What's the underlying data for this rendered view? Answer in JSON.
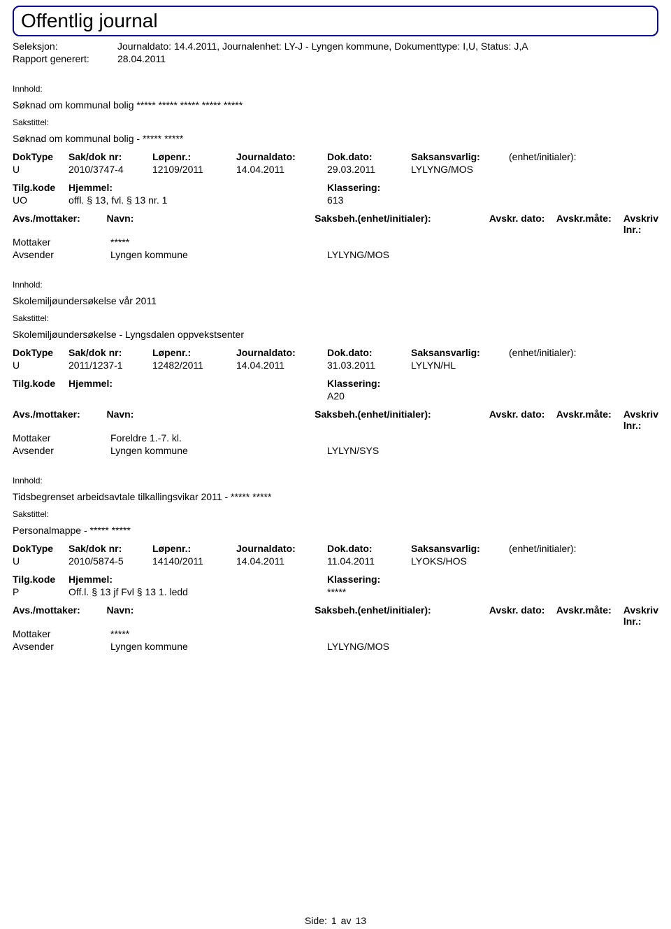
{
  "header": {
    "title": "Offentlig journal"
  },
  "meta": {
    "seleksjon_label": "Seleksjon:",
    "seleksjon_value": "Journaldato: 14.4.2011, Journalenhet: LY-J - Lyngen kommune, Dokumenttype: I,U, Status: J,A",
    "rapport_label": "Rapport generert:",
    "rapport_value": "28.04.2011"
  },
  "labels": {
    "innhold": "Innhold:",
    "sakstittel": "Sakstittel:",
    "doktype": "DokType",
    "sakdok": "Sak/dok nr:",
    "lopenr": "Løpenr.:",
    "journaldato": "Journaldato:",
    "dokdato": "Dok.dato:",
    "saksansvarlig": "Saksansvarlig:",
    "enhet": "(enhet/initialer):",
    "tilgkode": "Tilg.kode",
    "hjemmel": "Hjemmel:",
    "klassering": "Klassering:",
    "avsmottaker": "Avs./mottaker:",
    "navn": "Navn:",
    "saksbeh": "Saksbeh.(enhet/initialer):",
    "avskr_dato": "Avskr. dato:",
    "avskr_mate": "Avskr.måte:",
    "avskriv_lnr": "Avskriv lnr.:",
    "mottaker": "Mottaker",
    "avsender": "Avsender"
  },
  "entries": [
    {
      "innhold": "Søknad om kommunal bolig ***** ***** ***** ***** *****",
      "sakstittel": "Søknad om kommunal bolig - ***** *****",
      "doktype": "U",
      "sakdok": "2010/3747-4",
      "lopenr": "12109/2011",
      "journaldato": "14.04.2011",
      "dokdato": "29.03.2011",
      "saksansvarlig": "LYLYNG/MOS",
      "enhet": "",
      "tilgkode": "UO",
      "hjemmel": "offl. § 13, fvl. § 13 nr. 1",
      "klassering": "613",
      "mottaker_navn": "*****",
      "avsender_navn": "Lyngen kommune",
      "avsender_saksbeh": "LYLYNG/MOS"
    },
    {
      "innhold": "Skolemiljøundersøkelse vår 2011",
      "sakstittel": "Skolemiljøundersøkelse - Lyngsdalen oppvekstsenter",
      "doktype": "U",
      "sakdok": "2011/1237-1",
      "lopenr": "12482/2011",
      "journaldato": "14.04.2011",
      "dokdato": "31.03.2011",
      "saksansvarlig": "LYLYN/HL",
      "enhet": "",
      "tilgkode": "",
      "hjemmel": "",
      "klassering": "A20",
      "mottaker_navn": "Foreldre 1.-7. kl.",
      "avsender_navn": "Lyngen kommune",
      "avsender_saksbeh": "LYLYN/SYS"
    },
    {
      "innhold": "Tidsbegrenset arbeidsavtale tilkallingsvikar 2011 - ***** *****",
      "sakstittel": "Personalmappe - ***** *****",
      "doktype": "U",
      "sakdok": "2010/5874-5",
      "lopenr": "14140/2011",
      "journaldato": "14.04.2011",
      "dokdato": "11.04.2011",
      "saksansvarlig": "LYOKS/HOS",
      "enhet": "",
      "tilgkode": "P",
      "hjemmel": "Off.l. § 13 jf Fvl § 13 1. ledd",
      "klassering": "*****",
      "mottaker_navn": "*****",
      "avsender_navn": "Lyngen kommune",
      "avsender_saksbeh": "LYLYNG/MOS"
    }
  ],
  "footer": {
    "side_label": "Side:",
    "page": "1",
    "av": "av",
    "total": "13"
  }
}
